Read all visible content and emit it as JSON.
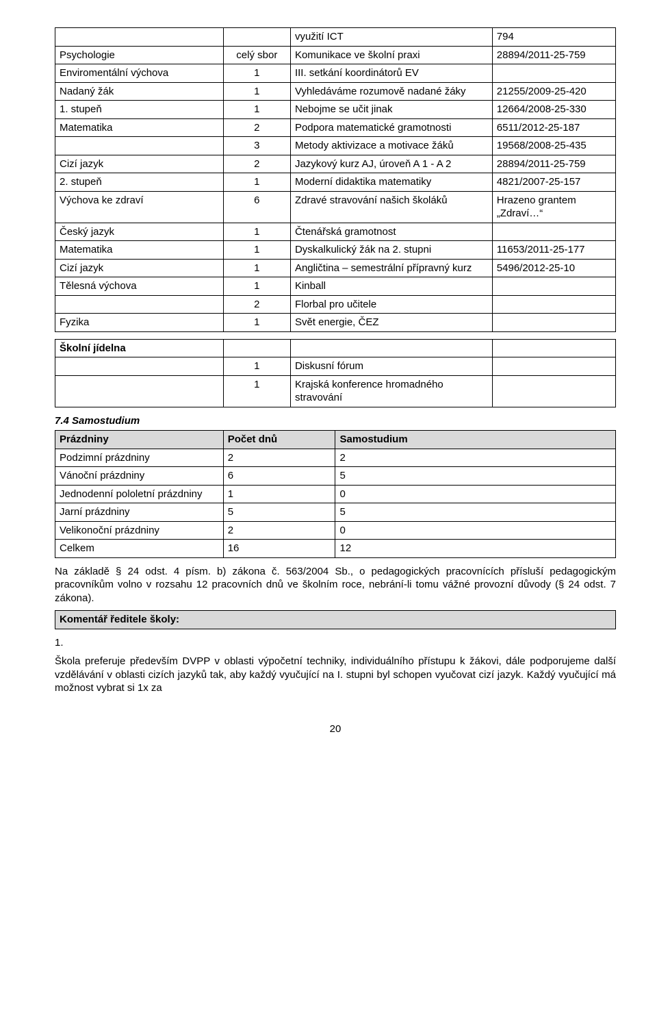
{
  "table1": {
    "rows": [
      {
        "c1": "",
        "c2": "",
        "c3": "využití ICT",
        "c4": "794"
      },
      {
        "c1": "Psychologie",
        "c2": "celý sbor",
        "c3": "Komunikace ve školní praxi",
        "c4": "28894/2011-25-759"
      },
      {
        "c1": "Enviromentální výchova",
        "c2": "1",
        "c3": "III. setkání koordinátorů EV",
        "c4": ""
      },
      {
        "c1": "Nadaný žák",
        "c2": "1",
        "c3": "Vyhledáváme rozumově nadané žáky",
        "c4": "21255/2009-25-420"
      },
      {
        "c1": "1. stupeň",
        "c2": "1",
        "c3": "Nebojme se učit jinak",
        "c4": "12664/2008-25-330"
      },
      {
        "c1": "Matematika",
        "c2": "2",
        "c3": "Podpora matematické gramotnosti",
        "c4": "6511/2012-25-187"
      },
      {
        "c1": "",
        "c2": "3",
        "c3": "Metody aktivizace a motivace žáků",
        "c4": "19568/2008-25-435"
      },
      {
        "c1": "Cizí jazyk",
        "c2": "2",
        "c3": "Jazykový kurz AJ, úroveň A 1 - A 2",
        "c4": "28894/2011-25-759"
      },
      {
        "c1": "2. stupeň",
        "c2": "1",
        "c3": "Moderní didaktika matematiky",
        "c4": "4821/2007-25-157"
      },
      {
        "c1": "Výchova ke zdraví",
        "c2": "6",
        "c3": "Zdravé stravování našich školáků",
        "c4": "Hrazeno grantem „Zdraví…“"
      },
      {
        "c1": "Český jazyk",
        "c2": "1",
        "c3": "Čtenářská gramotnost",
        "c4": ""
      },
      {
        "c1": "Matematika",
        "c2": "1",
        "c3": "Dyskalkulický žák na 2. stupni",
        "c4": "11653/2011-25-177"
      },
      {
        "c1": "Cizí jazyk",
        "c2": "1",
        "c3": "Angličtina – semestrální přípravný kurz",
        "c4": "5496/2012-25-10"
      },
      {
        "c1": "Tělesná výchova",
        "c2": "1",
        "c3": "Kinball",
        "c4": ""
      },
      {
        "c1": "",
        "c2": "2",
        "c3": "Florbal pro učitele",
        "c4": ""
      },
      {
        "c1": "Fyzika",
        "c2": "1",
        "c3": "Svět energie, ČEZ",
        "c4": ""
      }
    ]
  },
  "table2": {
    "header": "Školní jídelna",
    "rows": [
      {
        "c2": "1",
        "c3": "Diskusní fórum"
      },
      {
        "c2": "1",
        "c3": "Krajská konference hromadného stravování"
      }
    ]
  },
  "section74": "7.4 Samostudium",
  "table3": {
    "headers": {
      "h1": "Prázdniny",
      "h2": "Počet dnů",
      "h3": "Samostudium"
    },
    "rows": [
      {
        "c1": "Podzimní prázdniny",
        "c2": "2",
        "c3": "2"
      },
      {
        "c1": "Vánoční prázdniny",
        "c2": "6",
        "c3": "5"
      },
      {
        "c1": "Jednodenní pololetní prázdniny",
        "c2": "1",
        "c3": "0"
      },
      {
        "c1": "Jarní prázdniny",
        "c2": "5",
        "c3": "5"
      },
      {
        "c1": "Velikonoční prázdniny",
        "c2": "2",
        "c3": "0"
      },
      {
        "c1": "Celkem",
        "c2": "16",
        "c3": "12"
      }
    ]
  },
  "para1": "Na základě § 24 odst. 4 písm. b) zákona č. 563/2004 Sb., o pedagogických pracovnících přísluší pedagogickým pracovníkům volno v rozsahu 12 pracovních dnů ve školním roce, nebrání-li tomu vážné provozní důvody (§ 24 odst. 7 zákona).",
  "commentHeader": "Komentář ředitele školy:",
  "commentNum": "1.",
  "commentBody": "Škola preferuje především DVPP v oblasti výpočetní techniky, individuálního přístupu k žákovi, dále podporujeme další vzdělávání v oblasti cizích jazyků tak, aby každý vyučující na I. stupni byl schopen vyučovat cizí jazyk. Každý vyučující má možnost vybrat si 1x za",
  "pageNumber": "20"
}
